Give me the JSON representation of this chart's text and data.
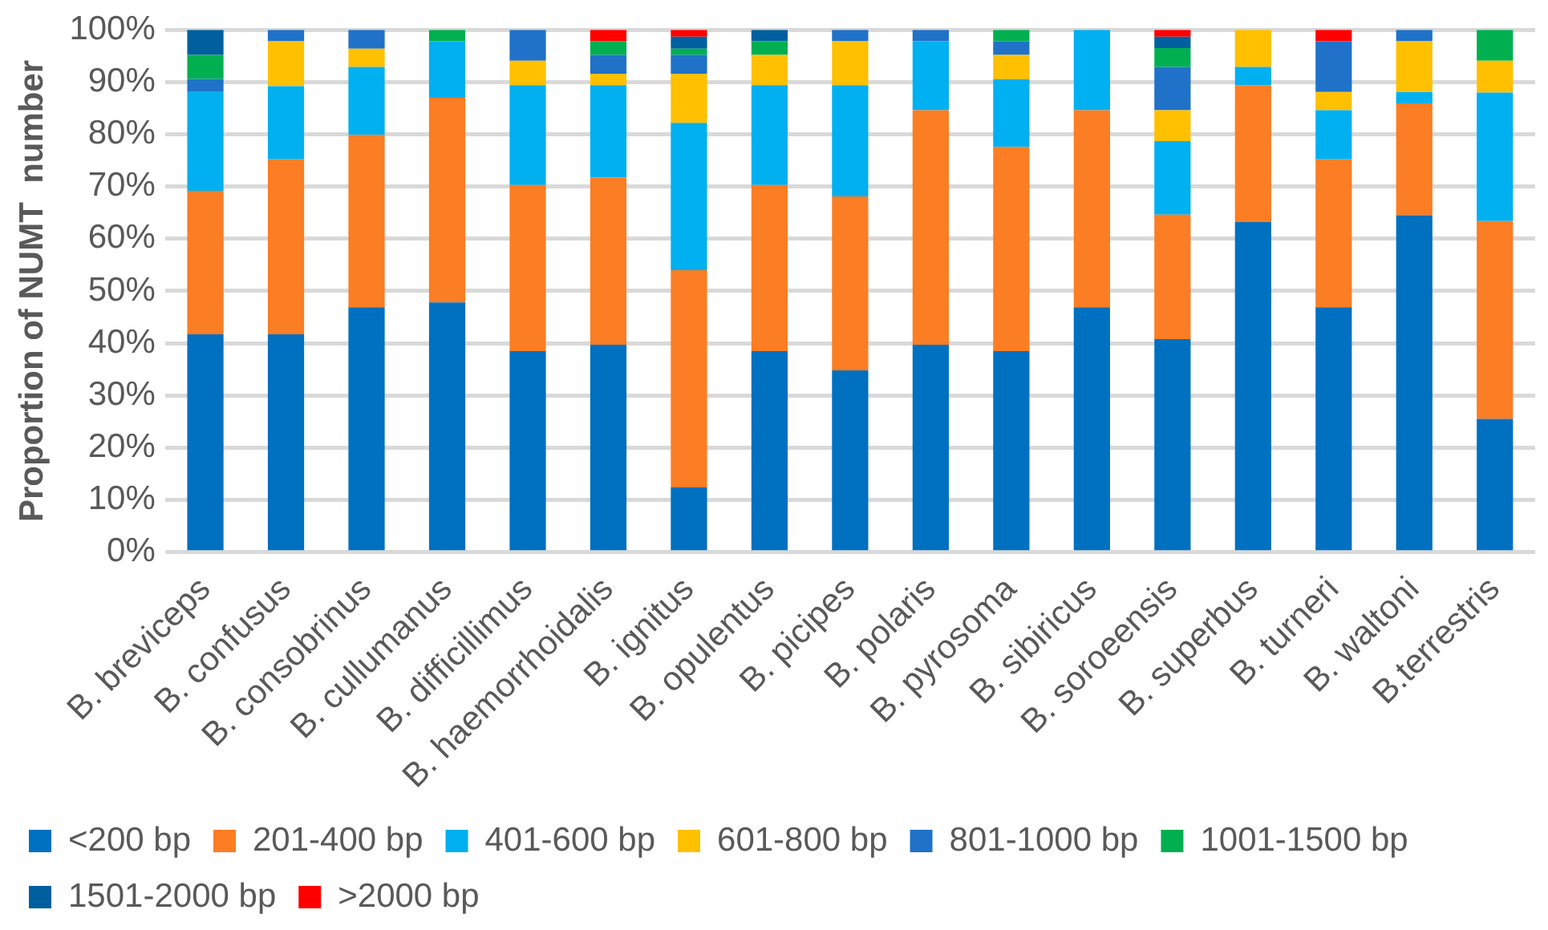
{
  "chart_data": {
    "type": "bar",
    "stacked": true,
    "ylabel": "Proportion of NUMT  number",
    "categories": [
      "B. breviceps",
      "B. confusus",
      "B. consobrinus",
      "B. cullumanus",
      "B. difficillimus",
      "B. haemorrhoidalis",
      "B. ignitus",
      "B. opulentus",
      "B. picipes",
      "B. polaris",
      "B. pyrosoma",
      "B. sibiricus",
      "B. soroeensis",
      "B. superbus",
      "B. turneri",
      "B. waltoni",
      "B.terrestris"
    ],
    "series": [
      {
        "name": "<200 bp",
        "color": "#0070c0",
        "values": [
          41.7,
          41.7,
          46.9,
          47.8,
          38.5,
          39.7,
          12.4,
          38.5,
          34.8,
          39.7,
          38.5,
          46.9,
          40.8,
          63.2,
          46.9,
          64.5,
          25.5
        ]
      },
      {
        "name": "201-400 bp",
        "color": "#fb7d24",
        "values": [
          27.5,
          33.5,
          33.0,
          39.2,
          31.8,
          32.0,
          41.6,
          31.8,
          33.3,
          44.9,
          39.1,
          37.7,
          23.8,
          26.2,
          28.3,
          21.4,
          37.9
        ]
      },
      {
        "name": "401-600 bp",
        "color": "#00b0f0",
        "values": [
          18.9,
          14.0,
          13.0,
          10.8,
          19.1,
          17.7,
          28.2,
          19.1,
          21.3,
          13.2,
          12.9,
          15.4,
          14.1,
          3.5,
          9.4,
          2.2,
          24.6
        ]
      },
      {
        "name": "601-800 bp",
        "color": "#ffc000",
        "values": [
          0,
          8.6,
          3.5,
          0,
          4.7,
          2.2,
          9.4,
          5.8,
          8.4,
          0,
          4.7,
          0,
          5.9,
          7.1,
          3.5,
          9.7,
          6.1
        ]
      },
      {
        "name": "801-1000 bp",
        "color": "#1f72c8",
        "values": [
          2.5,
          2.2,
          3.6,
          0,
          5.9,
          3.6,
          3.6,
          0,
          2.2,
          2.2,
          2.6,
          0,
          8.3,
          0,
          9.7,
          2.2,
          0
        ]
      },
      {
        "name": "1001-1500 bp",
        "color": "#00b050",
        "values": [
          4.6,
          0,
          0,
          2.2,
          0,
          2.6,
          1.2,
          2.6,
          0,
          0,
          2.2,
          0,
          3.6,
          0,
          0,
          0,
          5.9
        ]
      },
      {
        "name": "1501-2000 bp",
        "color": "#005f9e",
        "values": [
          4.8,
          0,
          0,
          0,
          0,
          0,
          2.3,
          2.2,
          0,
          0,
          0,
          0,
          2.2,
          0,
          0,
          0,
          0
        ]
      },
      {
        "name": ">2000 bp",
        "color": "#ff0000",
        "values": [
          0,
          0,
          0,
          0,
          0,
          2.2,
          1.3,
          0,
          0,
          0,
          0,
          0,
          1.3,
          0,
          2.2,
          0,
          0
        ]
      }
    ],
    "ylim": [
      0,
      100
    ],
    "yticks": [
      {
        "value": 0,
        "label": "0%"
      },
      {
        "value": 10,
        "label": "10%"
      },
      {
        "value": 20,
        "label": "20%"
      },
      {
        "value": 30,
        "label": "30%"
      },
      {
        "value": 40,
        "label": "40%"
      },
      {
        "value": 50,
        "label": "50%"
      },
      {
        "value": 60,
        "label": "60%"
      },
      {
        "value": 70,
        "label": "70%"
      },
      {
        "value": 80,
        "label": "80%"
      },
      {
        "value": 90,
        "label": "90%"
      },
      {
        "value": 100,
        "label": "100%"
      }
    ],
    "grid": "y",
    "legend": "bottom"
  }
}
